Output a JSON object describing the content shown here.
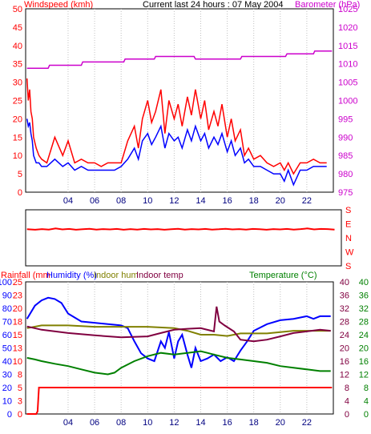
{
  "header": {
    "wind_title": "Windspeed (kmh)",
    "center_title": "Current last 24 hours : 07 May 2004",
    "baro_title": "Barometer (hPa)"
  },
  "colors": {
    "red": "#ff0000",
    "blue": "#0000ff",
    "magenta": "#cc00cc",
    "green": "#008000",
    "olive": "#808000",
    "maroon": "#800040",
    "axis": "#000000",
    "grid": "#c0c0c0"
  },
  "chart_data": [
    {
      "type": "line",
      "title": "",
      "xticks": [
        "04",
        "06",
        "08",
        "10",
        "12",
        "14",
        "16",
        "18",
        "20",
        "22"
      ],
      "left_axis": {
        "label": "Windspeed (kmh)",
        "ticks": [
          0,
          5,
          10,
          15,
          20,
          25,
          30,
          35,
          40,
          45,
          50
        ],
        "range": [
          0,
          50
        ]
      },
      "right_axis": {
        "label": "Barometer (hPa)",
        "ticks": [
          975,
          980,
          985,
          990,
          995,
          1000,
          1005,
          1010,
          1015,
          1020,
          1025
        ],
        "range": [
          975,
          1025
        ]
      },
      "x_range_hours": [
        0.8,
        24.0
      ],
      "series": [
        {
          "name": "Windspeed",
          "axis": "left",
          "color": "#ff0000",
          "x": [
            0.9,
            1.0,
            1.1,
            1.2,
            1.3,
            1.4,
            1.6,
            1.8,
            2.0,
            2.4,
            3.0,
            3.6,
            4.0,
            4.5,
            5.0,
            5.5,
            6.0,
            6.5,
            7.0,
            7.5,
            8.0,
            8.5,
            9.0,
            9.3,
            9.6,
            10.0,
            10.3,
            10.6,
            11.0,
            11.3,
            11.6,
            12.0,
            12.3,
            12.6,
            13.0,
            13.3,
            13.6,
            14.0,
            14.3,
            14.6,
            15.0,
            15.3,
            15.6,
            16.0,
            16.3,
            16.6,
            17.0,
            17.3,
            17.6,
            18.0,
            18.5,
            19.0,
            19.5,
            20.0,
            20.3,
            20.6,
            21.0,
            21.5,
            22.0,
            22.5,
            23.0,
            23.5
          ],
          "y": [
            31,
            25,
            28,
            22,
            20,
            15,
            12,
            10,
            9,
            8,
            15,
            10,
            14,
            8,
            9,
            8,
            8,
            7,
            8,
            8,
            8,
            14,
            18,
            12,
            20,
            25,
            19,
            22,
            28,
            16,
            25,
            20,
            24,
            18,
            26,
            21,
            28,
            20,
            25,
            17,
            22,
            18,
            24,
            15,
            20,
            14,
            17,
            10,
            12,
            9,
            10,
            8,
            7,
            8,
            6,
            8,
            5,
            8,
            8,
            9,
            8,
            8
          ]
        },
        {
          "name": "Gust",
          "axis": "left",
          "color": "#0000ff",
          "x": [
            0.9,
            1.0,
            1.1,
            1.2,
            1.3,
            1.4,
            1.6,
            1.8,
            2.0,
            2.4,
            3.0,
            3.6,
            4.0,
            4.5,
            5.0,
            5.5,
            6.0,
            6.5,
            7.0,
            7.5,
            8.0,
            8.5,
            9.0,
            9.3,
            9.6,
            10.0,
            10.3,
            10.6,
            11.0,
            11.3,
            11.6,
            12.0,
            12.3,
            12.6,
            13.0,
            13.3,
            13.6,
            14.0,
            14.3,
            14.6,
            15.0,
            15.3,
            15.6,
            16.0,
            16.3,
            16.6,
            17.0,
            17.3,
            17.6,
            18.0,
            18.5,
            19.0,
            19.5,
            20.0,
            20.3,
            20.6,
            21.0,
            21.5,
            22.0,
            22.5,
            23.0,
            23.5
          ],
          "y": [
            20,
            18,
            19,
            16,
            14,
            10,
            8,
            8,
            7,
            7,
            9,
            7,
            8,
            6,
            7,
            6,
            6,
            6,
            6,
            6,
            7,
            9,
            12,
            9,
            14,
            16,
            13,
            15,
            18,
            12,
            16,
            14,
            15,
            12,
            17,
            14,
            18,
            14,
            16,
            12,
            15,
            13,
            16,
            11,
            14,
            10,
            12,
            8,
            9,
            7,
            7,
            6,
            5,
            5,
            3,
            6,
            2,
            6,
            6,
            7,
            7,
            7
          ]
        },
        {
          "name": "Barometer",
          "axis": "right",
          "color": "#cc00cc",
          "x": [
            0.9,
            2.5,
            2.6,
            5.0,
            5.1,
            8.2,
            8.3,
            10.5,
            10.6,
            13.5,
            13.6,
            17.0,
            17.1,
            20.4,
            20.5,
            22.5,
            22.6,
            23.9
          ],
          "y": [
            1008.8,
            1008.8,
            1009.6,
            1009.6,
            1010.5,
            1010.5,
            1011.3,
            1011.3,
            1012.0,
            1012.0,
            1011.3,
            1011.3,
            1012.0,
            1012.0,
            1012.7,
            1012.7,
            1013.5,
            1013.5
          ]
        }
      ]
    },
    {
      "type": "line",
      "title": "",
      "axis_labels": [
        "S",
        "E",
        "N",
        "W",
        "S"
      ],
      "series": [
        {
          "name": "Wind direction",
          "color": "#ff0000",
          "x": [
            0.9,
            1.5,
            2.0,
            2.5,
            3.0,
            3.5,
            4.0,
            4.5,
            5.0,
            5.5,
            6.0,
            6.5,
            7.0,
            7.5,
            8.0,
            8.5,
            9.0,
            9.5,
            10.0,
            10.5,
            11.0,
            11.5,
            12.0,
            12.5,
            13.0,
            13.5,
            14.0,
            14.5,
            15.0,
            15.5,
            16.0,
            16.5,
            17.0,
            17.5,
            18.0,
            18.5,
            19.0,
            19.5,
            20.0,
            20.5,
            21.0,
            21.5,
            22.0,
            22.5,
            23.0,
            23.5
          ],
          "y": [
            235,
            232,
            236,
            233,
            240,
            234,
            237,
            232,
            235,
            238,
            233,
            236,
            234,
            237,
            232,
            236,
            233,
            237,
            234,
            236,
            232,
            235,
            238,
            233,
            236,
            234,
            237,
            233,
            235,
            238,
            234,
            236,
            233,
            237,
            235,
            232,
            236,
            234,
            237,
            233,
            236,
            240,
            234,
            237,
            236,
            233
          ]
        }
      ]
    },
    {
      "type": "line",
      "title": "",
      "xticks": [
        "04",
        "06",
        "08",
        "10",
        "12",
        "14",
        "16",
        "18",
        "20",
        "22"
      ],
      "axis_labels": [
        "Rainfall (mm",
        "Humidity (%)",
        "Indoor hum",
        "Indoor temp",
        "Temperature (°C)"
      ],
      "rainfall_ticks": [
        0,
        3,
        5,
        8,
        10,
        13,
        15,
        18,
        20,
        23,
        25
      ],
      "humidity_ticks": [
        0,
        10,
        20,
        30,
        40,
        50,
        60,
        70,
        80,
        90,
        100
      ],
      "temp_ticks_left": [
        0,
        4,
        8,
        12,
        16,
        20,
        24,
        28,
        32,
        36,
        40
      ],
      "temp_ticks_right": [
        0,
        4,
        8,
        12,
        16,
        20,
        24,
        28,
        32,
        36,
        40
      ],
      "series": [
        {
          "name": "Rainfall",
          "axis": "rain",
          "color": "#ff0000",
          "x": [
            0.9,
            1.6,
            1.7,
            1.8,
            23.9
          ],
          "y": [
            0,
            0,
            0.5,
            5,
            5
          ]
        },
        {
          "name": "Humidity",
          "axis": "hum",
          "color": "#0000ff",
          "x": [
            0.9,
            1.5,
            2.0,
            2.5,
            3.0,
            3.5,
            4.0,
            5.0,
            6.0,
            7.0,
            8.0,
            8.5,
            9.0,
            9.5,
            10.0,
            10.5,
            11.0,
            11.3,
            11.6,
            12.0,
            12.3,
            12.6,
            13.0,
            13.3,
            13.6,
            14.0,
            14.5,
            15.0,
            15.5,
            16.0,
            16.5,
            17.0,
            17.5,
            18.0,
            19.0,
            20.0,
            21.0,
            22.0,
            22.5,
            23.0,
            23.8
          ],
          "y": [
            72,
            82,
            86,
            88,
            87,
            84,
            76,
            70,
            69,
            68,
            67,
            65,
            55,
            46,
            42,
            40,
            55,
            50,
            62,
            42,
            55,
            60,
            45,
            35,
            50,
            40,
            42,
            45,
            40,
            43,
            40,
            48,
            55,
            63,
            68,
            71,
            72,
            74,
            72,
            74,
            74
          ]
        },
        {
          "name": "Indoor hum",
          "axis": "hum",
          "color": "#808000",
          "x": [
            0.9,
            2.0,
            4.0,
            6.0,
            8.0,
            10.0,
            12.0,
            13.0,
            14.0,
            15.0,
            16.0,
            17.0,
            18.0,
            19.0,
            20.0,
            21.0,
            22.0,
            23.0,
            23.8
          ],
          "y": [
            65,
            67,
            67,
            66,
            66,
            66,
            65,
            63,
            60,
            60,
            59,
            61,
            61,
            61,
            62,
            63,
            63,
            63,
            63
          ]
        },
        {
          "name": "Indoor temp",
          "axis": "temp",
          "color": "#800040",
          "x": [
            0.9,
            2.0,
            4.0,
            6.0,
            8.0,
            10.0,
            11.0,
            12.0,
            13.0,
            14.0,
            15.0,
            15.2,
            15.4,
            15.8,
            16.5,
            17.0,
            18.0,
            19.0,
            20.0,
            21.0,
            22.0,
            23.0,
            23.8
          ],
          "y": [
            26.5,
            25.5,
            24.5,
            23.8,
            23.2,
            23.5,
            24.5,
            25.5,
            25.8,
            26.0,
            25.0,
            32.5,
            28.0,
            26.8,
            25.0,
            22.5,
            22.0,
            22.5,
            23.5,
            24.5,
            25.0,
            25.5,
            25.2
          ]
        },
        {
          "name": "Temperature",
          "axis": "temp",
          "color": "#008000",
          "x": [
            0.9,
            1.5,
            2.0,
            3.0,
            4.0,
            5.0,
            6.0,
            7.0,
            7.5,
            8.0,
            9.0,
            10.0,
            11.0,
            12.0,
            13.0,
            14.0,
            14.5,
            15.0,
            16.0,
            17.0,
            18.0,
            19.0,
            20.0,
            21.0,
            22.0,
            23.0,
            23.8
          ],
          "y": [
            17,
            16.5,
            16,
            15.2,
            14.5,
            13.5,
            12.5,
            12,
            12.5,
            14,
            16,
            17.5,
            18.5,
            18,
            18.5,
            19,
            18.5,
            18,
            17,
            16.5,
            16,
            15.5,
            14.5,
            14,
            13.5,
            13,
            13
          ]
        }
      ]
    }
  ]
}
